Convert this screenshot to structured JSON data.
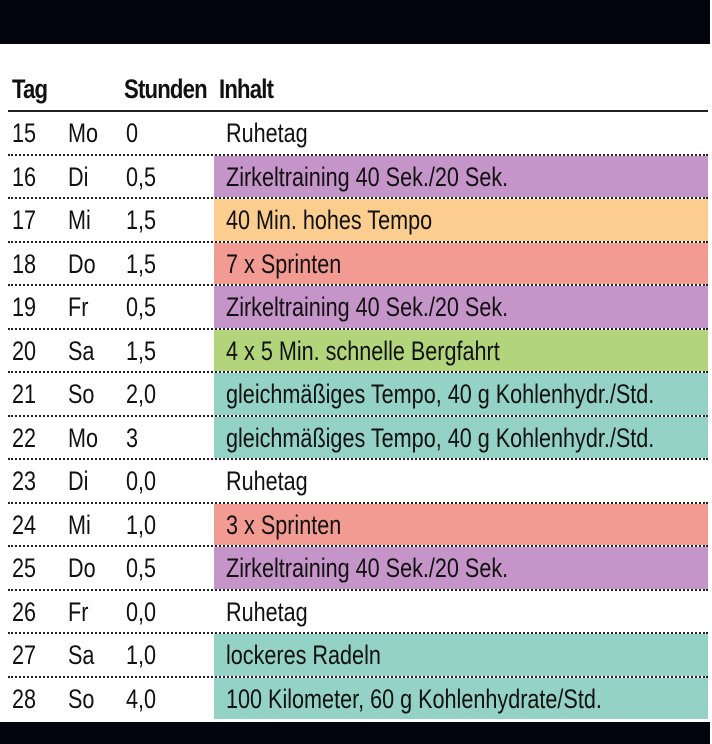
{
  "table": {
    "headers": {
      "tag": "Tag",
      "stunden": "Stunden",
      "inhalt": "Inhalt"
    },
    "colors": {
      "none": "transparent",
      "purple": "#c594c8",
      "orange": "#fbcd8e",
      "red": "#f29b93",
      "green": "#b2d57c",
      "teal": "#93d2c4"
    },
    "rows": [
      {
        "tag": "15",
        "day": "Mo",
        "stunden": "0",
        "inhalt": "Ruhetag",
        "color": "none"
      },
      {
        "tag": "16",
        "day": "Di",
        "stunden": "0,5",
        "inhalt": "Zirkeltraining 40 Sek./20 Sek.",
        "color": "purple"
      },
      {
        "tag": "17",
        "day": "Mi",
        "stunden": "1,5",
        "inhalt": "40 Min. hohes Tempo",
        "color": "orange"
      },
      {
        "tag": "18",
        "day": "Do",
        "stunden": "1,5",
        "inhalt": "7 x Sprinten",
        "color": "red"
      },
      {
        "tag": "19",
        "day": "Fr",
        "stunden": "0,5",
        "inhalt": "Zirkeltraining 40 Sek./20 Sek.",
        "color": "purple"
      },
      {
        "tag": "20",
        "day": "Sa",
        "stunden": "1,5",
        "inhalt": "4 x 5 Min. schnelle Bergfahrt",
        "color": "green"
      },
      {
        "tag": "21",
        "day": "So",
        "stunden": "2,0",
        "inhalt": "gleichmäßiges Tempo, 40 g Kohlenhydr./Std.",
        "color": "teal"
      },
      {
        "tag": "22",
        "day": "Mo",
        "stunden": "3",
        "inhalt": "gleichmäßiges Tempo, 40 g Kohlenhydr./Std.",
        "color": "teal"
      },
      {
        "tag": "23",
        "day": "Di",
        "stunden": "0,0",
        "inhalt": "Ruhetag",
        "color": "none"
      },
      {
        "tag": "24",
        "day": "Mi",
        "stunden": "1,0",
        "inhalt": "3 x Sprinten",
        "color": "red"
      },
      {
        "tag": "25",
        "day": "Do",
        "stunden": "0,5",
        "inhalt": "Zirkeltraining 40 Sek./20 Sek.",
        "color": "purple"
      },
      {
        "tag": "26",
        "day": "Fr",
        "stunden": "0,0",
        "inhalt": "Ruhetag",
        "color": "none"
      },
      {
        "tag": "27",
        "day": "Sa",
        "stunden": "1,0",
        "inhalt": "lockeres Radeln",
        "color": "teal"
      },
      {
        "tag": "28",
        "day": "So",
        "stunden": "4,0",
        "inhalt": "100 Kilometer, 60 g Kohlenhydrate/Std.",
        "color": "teal"
      }
    ]
  }
}
